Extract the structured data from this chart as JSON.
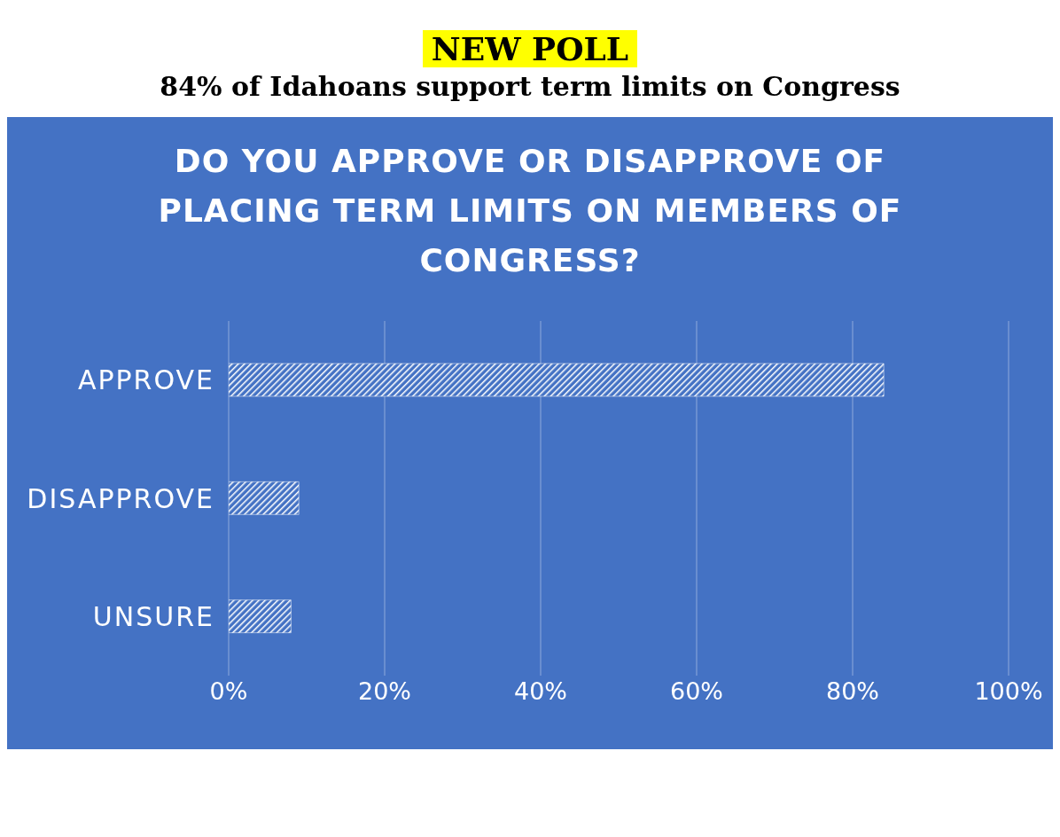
{
  "chart_data": {
    "type": "bar",
    "orientation": "horizontal",
    "title": "NEW POLL",
    "subtitle": "84% of Idahoans support term limits on Congress",
    "annotations": [
      "DO YOU APPROVE OR DISAPPROVE OF PLACING TERM LIMITS ON MEMBERS OF CONGRESS?"
    ],
    "categories": [
      "APPROVE",
      "DISAPPROVE",
      "UNSURE"
    ],
    "values": [
      84,
      9,
      8
    ],
    "color": "#ffffff",
    "xlim": [
      0,
      100
    ],
    "xticks": [
      {
        "value": 0,
        "label": "0%"
      },
      {
        "value": 20,
        "label": "20%"
      },
      {
        "value": 40,
        "label": "40%"
      },
      {
        "value": 60,
        "label": "60%"
      },
      {
        "value": 80,
        "label": "80%"
      },
      {
        "value": 100,
        "label": "100%"
      }
    ],
    "grid": "x",
    "legend": false
  }
}
